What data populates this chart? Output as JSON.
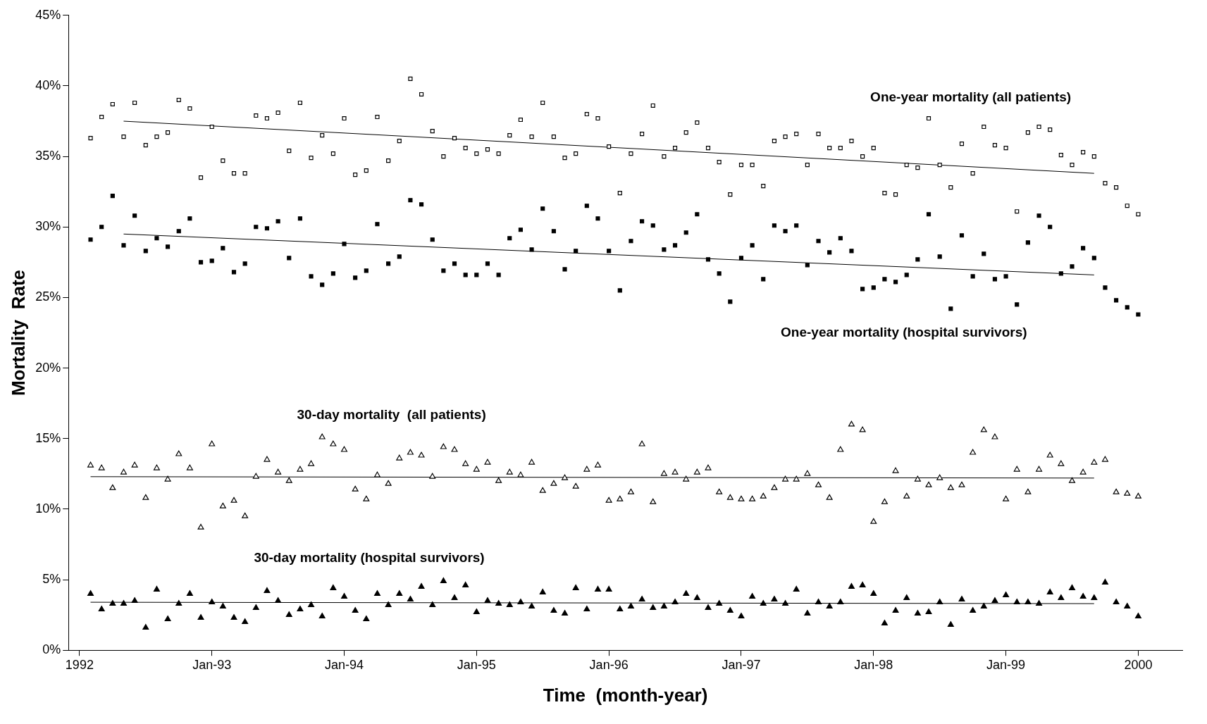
{
  "chart_data": {
    "type": "scatter",
    "xlabel": "Time  (month-year)",
    "ylabel": "Mortality  Rate",
    "x": [
      "1992-02",
      "1992-03",
      "1992-04",
      "1992-05",
      "1992-06",
      "1992-07",
      "1992-08",
      "1992-09",
      "1992-10",
      "1992-11",
      "1992-12",
      "1993-01",
      "1993-02",
      "1993-03",
      "1993-04",
      "1993-05",
      "1993-06",
      "1993-07",
      "1993-08",
      "1993-09",
      "1993-10",
      "1993-11",
      "1993-12",
      "1994-01",
      "1994-02",
      "1994-03",
      "1994-04",
      "1994-05",
      "1994-06",
      "1994-07",
      "1994-08",
      "1994-09",
      "1994-10",
      "1994-11",
      "1994-12",
      "1995-01",
      "1995-02",
      "1995-03",
      "1995-04",
      "1995-05",
      "1995-06",
      "1995-07",
      "1995-08",
      "1995-09",
      "1995-10",
      "1995-11",
      "1995-12",
      "1996-01",
      "1996-02",
      "1996-03",
      "1996-04",
      "1996-05",
      "1996-06",
      "1996-07",
      "1996-08",
      "1996-09",
      "1996-10",
      "1996-11",
      "1996-12",
      "1997-01",
      "1997-02",
      "1997-03",
      "1997-04",
      "1997-05",
      "1997-06",
      "1997-07",
      "1997-08",
      "1997-09",
      "1997-10",
      "1997-11",
      "1997-12",
      "1998-01",
      "1998-02",
      "1998-03",
      "1998-04",
      "1998-05",
      "1998-06",
      "1998-07",
      "1998-08",
      "1998-09",
      "1998-10",
      "1998-11",
      "1998-12",
      "1999-01",
      "1999-02",
      "1999-03",
      "1999-04",
      "1999-05",
      "1999-06",
      "1999-07",
      "1999-08",
      "1999-09",
      "1999-10",
      "1999-11",
      "1999-12",
      "2000-01"
    ],
    "series": [
      {
        "name": "One-year mortality (all patients)",
        "color": "#000000",
        "marker": "square",
        "values": [
          36.3,
          37.8,
          38.7,
          36.4,
          38.8,
          35.8,
          36.4,
          36.7,
          39.0,
          38.4,
          33.5,
          37.1,
          34.7,
          33.8,
          33.8,
          37.9,
          37.7,
          38.1,
          35.4,
          38.8,
          34.9,
          36.5,
          35.2,
          37.7,
          33.7,
          34.0,
          37.8,
          34.7,
          36.1,
          40.5,
          39.4,
          36.8,
          35.0,
          36.3,
          35.6,
          35.2,
          35.5,
          35.2,
          36.5,
          37.6,
          36.4,
          38.8,
          36.4,
          34.9,
          35.2,
          38.0,
          37.7,
          35.7,
          32.4,
          35.2,
          36.6,
          38.6,
          35.0,
          35.6,
          36.7,
          37.4,
          35.6,
          34.6,
          32.3,
          34.4,
          34.4,
          32.9,
          36.1,
          36.4,
          36.6,
          34.4,
          36.6,
          35.6,
          35.6,
          36.1,
          35.0,
          35.6,
          32.4,
          32.3,
          34.4,
          34.2,
          37.7,
          34.4,
          32.8,
          35.9,
          33.8,
          37.1,
          35.8,
          35.6,
          31.1,
          36.7,
          37.1,
          36.9,
          35.1,
          34.4,
          35.3,
          35.0,
          33.1,
          32.8,
          31.5,
          30.9
        ]
      },
      {
        "name": "One-year mortality (hospital survivors)",
        "color": "#000000",
        "marker": "square",
        "values": [
          29.1,
          30.0,
          32.2,
          28.7,
          30.8,
          28.3,
          29.2,
          28.6,
          29.7,
          30.6,
          27.5,
          27.6,
          28.5,
          26.8,
          27.4,
          30.0,
          29.9,
          30.4,
          27.8,
          30.6,
          26.5,
          25.9,
          26.7,
          28.8,
          26.4,
          26.9,
          30.2,
          27.4,
          27.9,
          31.9,
          31.6,
          29.1,
          26.9,
          27.4,
          26.6,
          26.6,
          27.4,
          26.6,
          29.2,
          29.8,
          28.4,
          31.3,
          29.7,
          27.0,
          28.3,
          31.5,
          30.6,
          28.3,
          25.5,
          29.0,
          30.4,
          30.1,
          28.4,
          28.7,
          29.6,
          30.9,
          27.7,
          26.7,
          24.7,
          27.8,
          28.7,
          26.3,
          30.1,
          29.7,
          30.1,
          27.3,
          29.0,
          28.2,
          29.2,
          28.3,
          25.6,
          25.7,
          26.3,
          26.1,
          26.6,
          27.7,
          30.9,
          27.9,
          24.2,
          29.4,
          26.5,
          28.1,
          26.3,
          26.5,
          24.5,
          28.9,
          30.8,
          30.0,
          26.7,
          27.2,
          28.5,
          27.8,
          25.7,
          24.8,
          24.3,
          23.8
        ]
      },
      {
        "name": "30-day mortality  (all patients)",
        "color": "#000000",
        "marker": "triangle",
        "values": [
          13.1,
          12.9,
          11.5,
          12.6,
          13.1,
          10.8,
          12.9,
          12.1,
          13.9,
          12.9,
          8.7,
          14.6,
          10.2,
          10.6,
          9.5,
          12.3,
          13.5,
          12.6,
          12.0,
          12.8,
          13.2,
          15.1,
          14.6,
          14.2,
          11.4,
          10.7,
          12.4,
          11.8,
          13.6,
          14.0,
          13.8,
          12.3,
          14.4,
          14.2,
          13.2,
          12.8,
          13.3,
          12.0,
          12.6,
          12.4,
          13.3,
          11.3,
          11.8,
          12.2,
          11.6,
          12.8,
          13.1,
          10.6,
          10.7,
          11.2,
          14.6,
          10.5,
          12.5,
          12.6,
          12.1,
          12.6,
          12.9,
          11.2,
          10.8,
          10.7,
          10.7,
          10.9,
          11.5,
          12.1,
          12.1,
          12.5,
          11.7,
          10.8,
          14.2,
          16.0,
          15.6,
          9.1,
          10.5,
          12.7,
          10.9,
          12.1,
          11.7,
          12.2,
          11.5,
          11.7,
          14.0,
          15.6,
          15.1,
          10.7,
          12.8,
          11.2,
          12.8,
          13.8,
          13.2,
          12.0,
          12.6,
          13.3,
          13.5,
          11.2,
          11.1,
          10.9
        ]
      },
      {
        "name": "30-day mortality (hospital survivors)",
        "color": "#000000",
        "marker": "triangle",
        "values": [
          4.0,
          2.9,
          3.3,
          3.3,
          3.5,
          1.6,
          4.3,
          2.2,
          3.3,
          4.0,
          2.3,
          3.4,
          3.1,
          2.3,
          2.0,
          3.0,
          4.2,
          3.5,
          2.5,
          2.9,
          3.2,
          2.4,
          4.4,
          3.8,
          2.8,
          2.2,
          4.0,
          3.2,
          4.0,
          3.6,
          4.5,
          3.2,
          4.9,
          3.7,
          4.6,
          2.7,
          3.5,
          3.3,
          3.2,
          3.4,
          3.1,
          4.1,
          2.8,
          2.6,
          4.4,
          2.9,
          4.3,
          4.3,
          2.9,
          3.1,
          3.6,
          3.0,
          3.1,
          3.4,
          4.0,
          3.7,
          3.0,
          3.3,
          2.8,
          2.4,
          3.8,
          3.3,
          3.6,
          3.3,
          4.3,
          2.6,
          3.4,
          3.1,
          3.4,
          4.5,
          4.6,
          4.0,
          1.9,
          2.8,
          3.7,
          2.6,
          2.7,
          3.4,
          1.8,
          3.6,
          2.8,
          3.1,
          3.5,
          3.9,
          3.4,
          3.4,
          3.3,
          4.1,
          3.7,
          4.4,
          3.8,
          3.7,
          4.8,
          3.4,
          3.1,
          2.4
        ]
      },
      {
        "type": "line",
        "color": "#000000",
        "x": [
          "1992-05",
          "1999-09"
        ],
        "values": [
          37.5,
          33.8
        ]
      },
      {
        "type": "line",
        "color": "#000000",
        "x": [
          "1992-05",
          "1999-09"
        ],
        "values": [
          29.5,
          26.6
        ]
      },
      {
        "type": "line",
        "color": "#000000",
        "x": [
          "1992-02",
          "1999-09"
        ],
        "values": [
          12.3,
          12.2
        ]
      },
      {
        "type": "line",
        "color": "#000000",
        "x": [
          "1992-02",
          "1999-09"
        ],
        "values": [
          3.4,
          3.3
        ]
      }
    ],
    "xlim": [
      "1991-12",
      "2000-05"
    ],
    "xticks": [
      {
        "value": "1992-01",
        "label": "1992"
      },
      {
        "value": "1993-01",
        "label": "Jan-93"
      },
      {
        "value": "1994-01",
        "label": "Jan-94"
      },
      {
        "value": "1995-01",
        "label": "Jan-95"
      },
      {
        "value": "1996-01",
        "label": "Jan-96"
      },
      {
        "value": "1997-01",
        "label": "Jan-97"
      },
      {
        "value": "1998-01",
        "label": "Jan-98"
      },
      {
        "value": "1999-01",
        "label": "Jan-99"
      },
      {
        "value": "2000-01",
        "label": "2000"
      }
    ],
    "ylim": [
      0,
      45
    ],
    "yticks": [
      {
        "value": 0,
        "label": "0%"
      },
      {
        "value": 5,
        "label": "5%"
      },
      {
        "value": 10,
        "label": "10%"
      },
      {
        "value": 15,
        "label": "15%"
      },
      {
        "value": 20,
        "label": "20%"
      },
      {
        "value": 25,
        "label": "25%"
      },
      {
        "value": 30,
        "label": "30%"
      },
      {
        "value": 35,
        "label": "35%"
      },
      {
        "value": 40,
        "label": "40%"
      },
      {
        "value": 45,
        "label": "45%"
      }
    ],
    "grid": false,
    "legend": false
  }
}
